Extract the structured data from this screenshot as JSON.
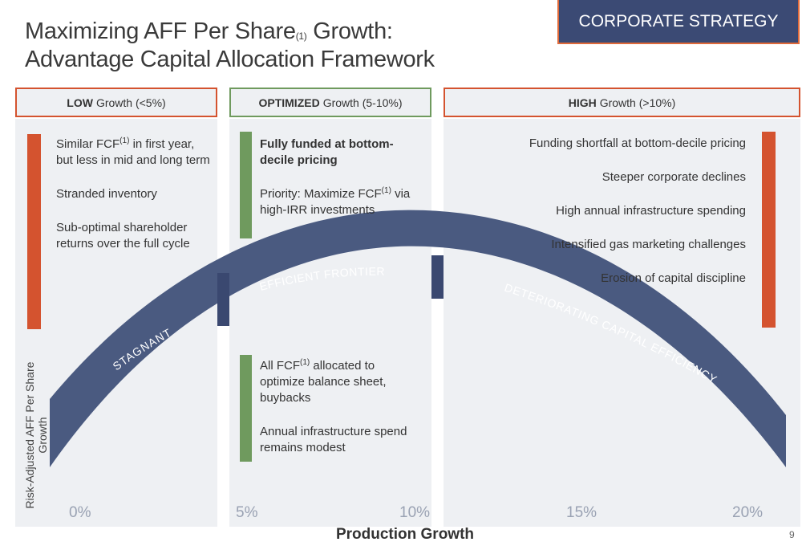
{
  "title_line1_a": "Maximizing AFF Per Share",
  "title_line1_sup": "(1)",
  "title_line1_b": " Growth:",
  "title_line2": "Advantage Capital Allocation Framework",
  "badge": "CORPORATE STRATEGY",
  "headers": {
    "low": {
      "bold": "LOW",
      "rest": "Growth (<5%)"
    },
    "optimized": {
      "bold": "OPTIMIZED",
      "rest": "Growth (5-10%)"
    },
    "high": {
      "bold": "HIGH",
      "rest": "Growth (>10%)"
    }
  },
  "low_items": {
    "item1_a": "Similar FCF",
    "item1_sup": "(1)",
    "item1_b": " in first year, but less in mid and long term",
    "item2": "Stranded inventory",
    "item3": "Sub-optimal shareholder returns over the full cycle"
  },
  "opt_top": {
    "item1": "Fully funded at bottom-decile pricing",
    "item2_a": "Priority: Maximize FCF",
    "item2_sup": "(1)",
    "item2_b": " via high-IRR investments"
  },
  "opt_bottom": {
    "item1_a": "All FCF",
    "item1_sup": "(1)",
    "item1_b": " allocated to optimize balance sheet, buybacks",
    "item2": "Annual infrastructure spend remains modest"
  },
  "high_items": [
    "Funding shortfall at bottom-decile pricing",
    "Steeper corporate declines",
    "High annual infrastructure spending",
    "Intensified gas marketing challenges",
    "Erosion of capital discipline"
  ],
  "arc_labels": {
    "stagnant": "STAGNANT",
    "frontier": "EFFICIENT FRONTIER",
    "deteriorating": "DETERIORATING CAPITAL EFFICIENCY"
  },
  "x_ticks": [
    "0%",
    "5%",
    "10%",
    "15%",
    "20%"
  ],
  "x_axis_label": "Production Growth",
  "y_axis_label": "Risk-Adjusted AFF Per Share Growth",
  "page_number": "9",
  "colors": {
    "arc": "#4a5a80",
    "arc_dark": "#3a4870",
    "red": "#d4532f",
    "green": "#6f9a5e",
    "badge_bg": "#3b4a74"
  }
}
